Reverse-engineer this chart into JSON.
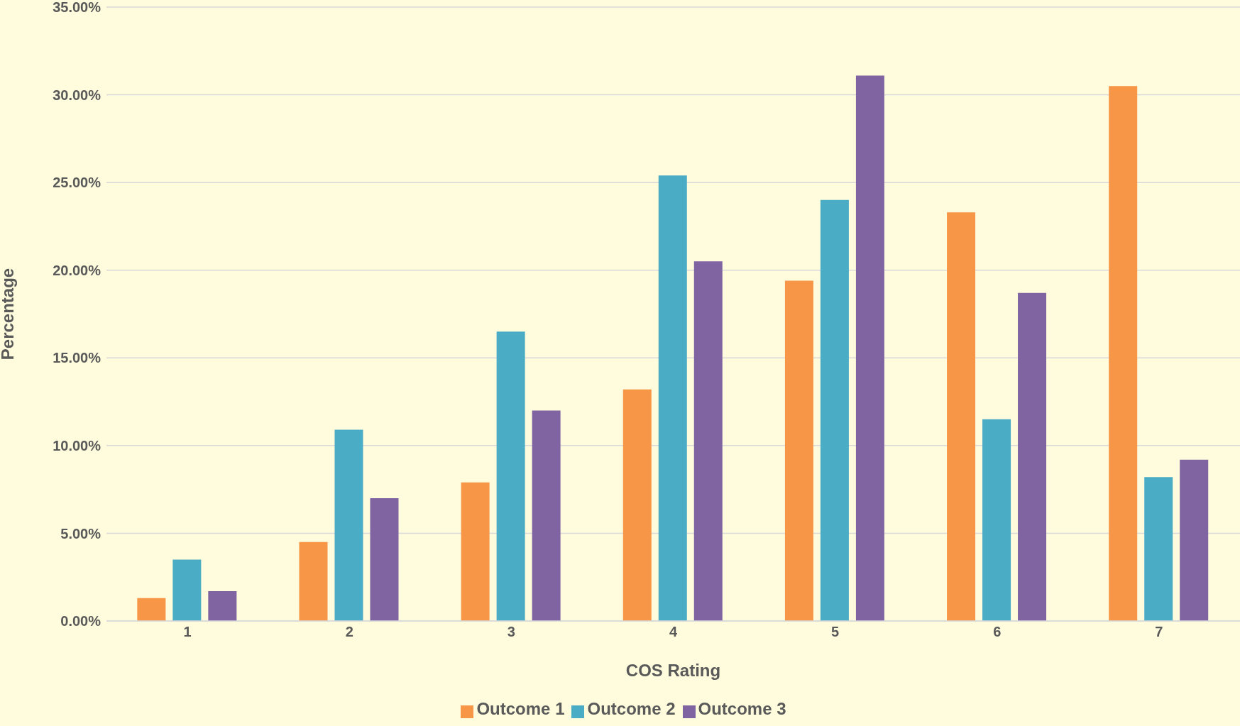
{
  "chart_data": {
    "type": "bar",
    "xlabel": "COS Rating",
    "ylabel": "Percentage",
    "categories": [
      "1",
      "2",
      "3",
      "4",
      "5",
      "6",
      "7"
    ],
    "series": [
      {
        "name": "Outcome 1",
        "color": "#f79646",
        "values": [
          1.3,
          4.5,
          7.9,
          13.2,
          19.4,
          23.3,
          30.5
        ]
      },
      {
        "name": "Outcome 2",
        "color": "#4bacc6",
        "values": [
          3.5,
          10.9,
          16.5,
          25.4,
          24.0,
          11.5,
          8.2
        ]
      },
      {
        "name": "Outcome 3",
        "color": "#8064a2",
        "values": [
          1.7,
          7.0,
          12.0,
          20.5,
          31.1,
          18.7,
          9.2
        ]
      }
    ],
    "ylim": [
      0,
      35
    ],
    "yticks": [
      {
        "value": 0,
        "label": "0.00%"
      },
      {
        "value": 5,
        "label": "5.00%"
      },
      {
        "value": 10,
        "label": "10.00%"
      },
      {
        "value": 15,
        "label": "15.00%"
      },
      {
        "value": 20,
        "label": "20.00%"
      },
      {
        "value": 25,
        "label": "25.00%"
      },
      {
        "value": 30,
        "label": "30.00%"
      },
      {
        "value": 35,
        "label": "35.00%"
      }
    ],
    "grid": "y",
    "legend": "bottom"
  }
}
